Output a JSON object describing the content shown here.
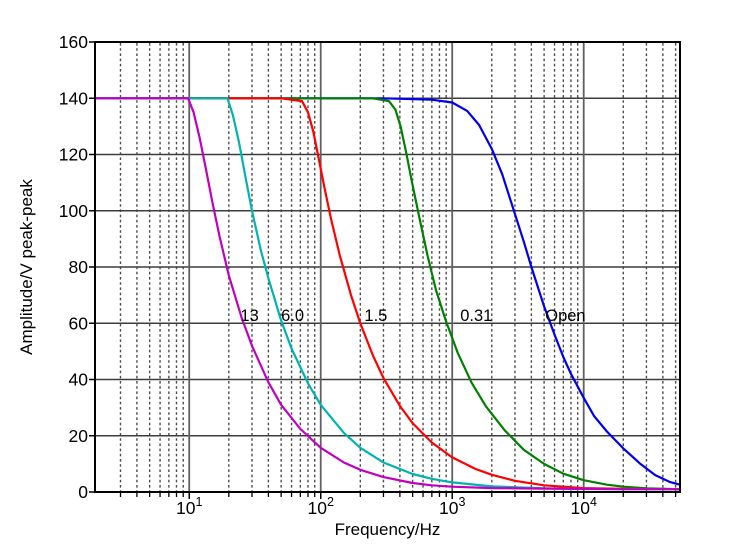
{
  "figure": {
    "background": "#ffffff"
  },
  "chart_data": {
    "type": "line",
    "title": "",
    "xlabel": "Frequency/Hz",
    "ylabel": "Amplitude/V peak-peak",
    "x_scale": "log",
    "xlim": [
      1.92,
      54000
    ],
    "ylim": [
      0,
      160
    ],
    "grid": true,
    "legend_position": "inline-curve-labels",
    "y_ticks": [
      0,
      20,
      40,
      60,
      80,
      100,
      120,
      140,
      160
    ],
    "x_major_ticks": [
      {
        "value": 10,
        "base": "10",
        "exp": "1"
      },
      {
        "value": 100,
        "base": "10",
        "exp": "2"
      },
      {
        "value": 1000,
        "base": "10",
        "exp": "3"
      },
      {
        "value": 10000,
        "base": "10",
        "exp": "4"
      }
    ],
    "x_minor_ticks": [
      3,
      4,
      5,
      6,
      7,
      8,
      9,
      20,
      30,
      40,
      50,
      60,
      70,
      80,
      90,
      200,
      300,
      400,
      500,
      600,
      700,
      800,
      900,
      2000,
      3000,
      4000,
      5000,
      6000,
      7000,
      8000,
      9000,
      20000,
      30000,
      40000,
      50000
    ],
    "styles": {
      "axis_color": "#000000",
      "text_color": "#000000",
      "horizontal_grid_color": "#3d3d3d",
      "major_vgrid_color": "#606060",
      "minor_vgrid_color": "#4d4d4d"
    },
    "series": [
      {
        "id": "curve-open",
        "name": "Open",
        "color": "#0000ee",
        "label": {
          "text": "Open",
          "f": 5100,
          "amp": 63
        },
        "points": [
          [
            1.92,
            140
          ],
          [
            300,
            140
          ],
          [
            700,
            139.5
          ],
          [
            1000,
            138.5
          ],
          [
            1300,
            135.5
          ],
          [
            1600,
            130.5
          ],
          [
            2000,
            122
          ],
          [
            2400,
            113
          ],
          [
            2900,
            101
          ],
          [
            3500,
            89
          ],
          [
            4000,
            80
          ],
          [
            5000,
            66
          ],
          [
            6000,
            56
          ],
          [
            7000,
            48
          ],
          [
            8000,
            42
          ],
          [
            10000,
            33.5
          ],
          [
            12000,
            27
          ],
          [
            15000,
            21.5
          ],
          [
            20000,
            15.5
          ],
          [
            27000,
            10
          ],
          [
            35000,
            6
          ],
          [
            45000,
            3.6
          ],
          [
            54000,
            2.6
          ]
        ]
      },
      {
        "id": "curve-0-31",
        "name": "0.31",
        "color": "#008000",
        "label": {
          "text": "0.31",
          "f": 1150,
          "amp": 63
        },
        "points": [
          [
            1.92,
            140
          ],
          [
            100,
            140
          ],
          [
            250,
            140
          ],
          [
            330,
            139
          ],
          [
            370,
            136
          ],
          [
            405,
            130
          ],
          [
            445,
            121
          ],
          [
            490,
            111
          ],
          [
            560,
            98
          ],
          [
            650,
            84
          ],
          [
            750,
            72
          ],
          [
            900,
            60.5
          ],
          [
            1100,
            49.5
          ],
          [
            1400,
            39
          ],
          [
            1800,
            30.5
          ],
          [
            2500,
            22
          ],
          [
            3500,
            15
          ],
          [
            5000,
            10
          ],
          [
            7000,
            6.5
          ],
          [
            10000,
            4.2
          ],
          [
            15000,
            2.6
          ],
          [
            20000,
            1.9
          ],
          [
            30000,
            1.3
          ],
          [
            54000,
            1.0
          ]
        ]
      },
      {
        "id": "curve-1-5",
        "name": "1.5",
        "color": "#ff0000",
        "label": {
          "text": "1.5",
          "f": 215,
          "amp": 63
        },
        "points": [
          [
            1.92,
            140
          ],
          [
            20,
            140
          ],
          [
            50,
            140
          ],
          [
            72,
            139
          ],
          [
            80,
            135
          ],
          [
            88,
            128
          ],
          [
            97,
            118
          ],
          [
            107,
            108
          ],
          [
            120,
            97
          ],
          [
            140,
            84
          ],
          [
            170,
            70
          ],
          [
            200,
            60
          ],
          [
            250,
            48.5
          ],
          [
            300,
            40.5
          ],
          [
            400,
            30.6
          ],
          [
            500,
            24.5
          ],
          [
            700,
            17.6
          ],
          [
            1000,
            12.3
          ],
          [
            1500,
            8.2
          ],
          [
            2000,
            6.1
          ],
          [
            3000,
            4.0
          ],
          [
            5000,
            2.4
          ],
          [
            10000,
            1.4
          ],
          [
            20000,
            1.1
          ],
          [
            54000,
            1.0
          ]
        ]
      },
      {
        "id": "curve-6-0",
        "name": "6.0",
        "color": "#00b2b2",
        "label": {
          "text": "6.0",
          "f": 50,
          "amp": 63
        },
        "points": [
          [
            1.92,
            140
          ],
          [
            6,
            140
          ],
          [
            14,
            140
          ],
          [
            19.5,
            140
          ],
          [
            21.5,
            134
          ],
          [
            24,
            124
          ],
          [
            27,
            111
          ],
          [
            30,
            100
          ],
          [
            35,
            86
          ],
          [
            40,
            76
          ],
          [
            50,
            61
          ],
          [
            60,
            51
          ],
          [
            80,
            38.6
          ],
          [
            100,
            31
          ],
          [
            150,
            21
          ],
          [
            200,
            15.7
          ],
          [
            300,
            10.5
          ],
          [
            500,
            6.4
          ],
          [
            700,
            4.7
          ],
          [
            1000,
            3.4
          ],
          [
            2000,
            2.0
          ],
          [
            5000,
            1.3
          ],
          [
            10000,
            1.1
          ],
          [
            20000,
            1.0
          ],
          [
            54000,
            1.0
          ]
        ]
      },
      {
        "id": "curve-13",
        "name": "13",
        "color": "#bf00bf",
        "label": {
          "text": "13",
          "f": 24.5,
          "amp": 63
        },
        "points": [
          [
            1.92,
            140
          ],
          [
            4,
            140
          ],
          [
            7,
            140
          ],
          [
            9.8,
            140
          ],
          [
            10.8,
            135
          ],
          [
            12,
            126
          ],
          [
            13.5,
            114
          ],
          [
            15,
            103
          ],
          [
            17,
            91
          ],
          [
            20,
            77
          ],
          [
            25,
            62
          ],
          [
            30,
            52
          ],
          [
            40,
            39
          ],
          [
            50,
            31
          ],
          [
            70,
            22.4
          ],
          [
            100,
            15.7
          ],
          [
            150,
            10.5
          ],
          [
            200,
            7.9
          ],
          [
            300,
            5.3
          ],
          [
            500,
            3.2
          ],
          [
            700,
            2.4
          ],
          [
            1000,
            1.9
          ],
          [
            2000,
            1.4
          ],
          [
            5000,
            1.2
          ],
          [
            10000,
            1.1
          ],
          [
            20000,
            1.0
          ],
          [
            54000,
            1.0
          ]
        ]
      }
    ]
  }
}
